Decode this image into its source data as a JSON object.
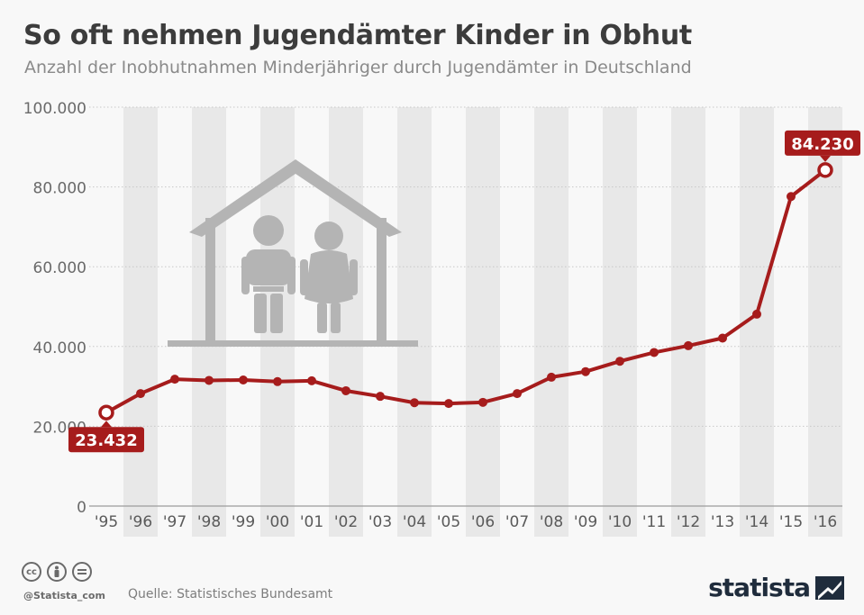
{
  "title": "So oft nehmen Jugendämter Kinder in Obhut",
  "subtitle": "Anzahl der Inobhutnahmen Minderjähriger durch Jugendämter in Deutschland",
  "source": "Quelle: Statistisches Bundesamt",
  "handle": "@Statista_com",
  "brand": "statista",
  "license_icons": [
    "cc",
    "by",
    "nd"
  ],
  "colors": {
    "line": "#a61c1c",
    "label_bg": "#a61c1c",
    "band": "#e8e8e8",
    "grid": "#c8c8c8",
    "illustration": "#b4b4b4"
  },
  "chart_data": {
    "type": "line",
    "categories": [
      "'95",
      "'96",
      "'97",
      "'98",
      "'99",
      "'00",
      "'01",
      "'02",
      "'03",
      "'04",
      "'05",
      "'06",
      "'07",
      "'08",
      "'09",
      "'10",
      "'11",
      "'12",
      "'13",
      "'14",
      "'15",
      "'16"
    ],
    "values": [
      23432,
      28200,
      31800,
      31500,
      31600,
      31200,
      31400,
      28900,
      27500,
      25900,
      25700,
      26000,
      28200,
      32300,
      33700,
      36300,
      38500,
      40200,
      42100,
      48100,
      77600,
      84230
    ],
    "y_ticks": [
      "0",
      "20.000",
      "40.000",
      "60.000",
      "80.000",
      "100.000"
    ],
    "ylim": [
      0,
      100000
    ],
    "grid": "horizontal-dotted",
    "alternating_bands": true,
    "annotations": [
      {
        "index": 0,
        "label": "23.432",
        "position": "below"
      },
      {
        "index": 21,
        "label": "84.230",
        "position": "above"
      }
    ]
  }
}
